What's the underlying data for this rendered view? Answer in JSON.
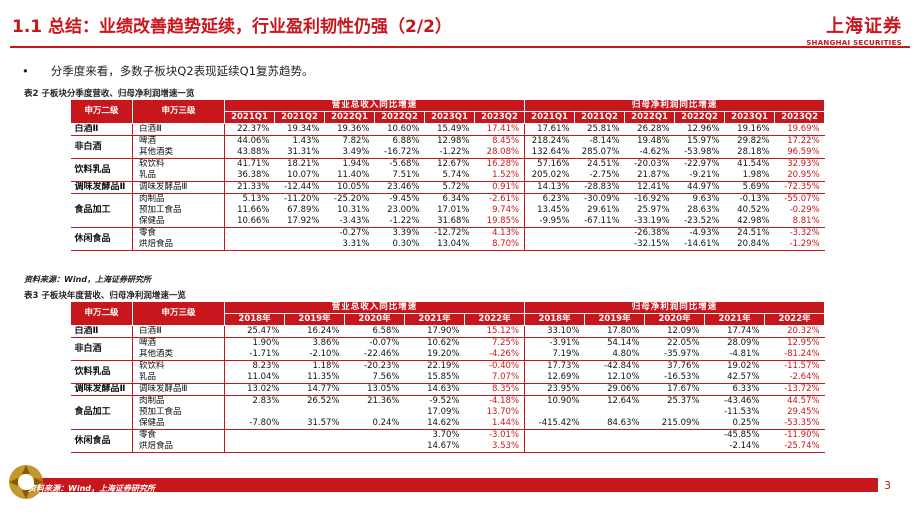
{
  "header": {
    "title": "1.1 总结：业绩改善趋势延续，行业盈利韧性仍强（2/2）",
    "logo_cn": "上海证券",
    "logo_en": "SHANGHAI SECURITIES"
  },
  "bullet": "分季度来看，多数子板块Q2表现延续Q1复苏趋势。",
  "table1": {
    "caption": "表2 子板块分季度营收、归母净利润增速一览",
    "col_l2": "申万二级",
    "col_l3": "申万三级",
    "group_revenue": "营业总收入同比增速",
    "group_profit": "归母净利润同比增速",
    "periods": [
      "2021Q1",
      "2021Q2",
      "2022Q1",
      "2022Q2",
      "2023Q1",
      "2023Q2"
    ],
    "rows": [
      {
        "l2": "白酒Ⅱ",
        "l3": "白酒Ⅲ",
        "rev": [
          "22.37%",
          "19.34%",
          "19.36%",
          "10.60%",
          "15.49%",
          "17.41%"
        ],
        "np": [
          "17.61%",
          "25.81%",
          "26.28%",
          "12.96%",
          "19.16%",
          "19.69%"
        ]
      },
      {
        "l2": "非白酒",
        "l3": "啤酒",
        "rev": [
          "44.06%",
          "1.43%",
          "7.82%",
          "6.88%",
          "12.98%",
          "8.45%"
        ],
        "np": [
          "218.24%",
          "-8.14%",
          "19.48%",
          "15.97%",
          "29.82%",
          "17.22%"
        ]
      },
      {
        "l2": "",
        "l3": "其他酒类",
        "rev": [
          "43.88%",
          "31.31%",
          "3.49%",
          "-16.72%",
          "-1.22%",
          "28.08%"
        ],
        "np": [
          "132.64%",
          "285.07%",
          "-4.62%",
          "-53.98%",
          "28.18%",
          "96.59%"
        ]
      },
      {
        "l2": "饮料乳品",
        "l3": "软饮料",
        "rev": [
          "41.71%",
          "18.21%",
          "1.94%",
          "-5.68%",
          "12.67%",
          "16.28%"
        ],
        "np": [
          "57.16%",
          "24.51%",
          "-20.03%",
          "-22.97%",
          "41.54%",
          "32.93%"
        ]
      },
      {
        "l2": "",
        "l3": "乳品",
        "rev": [
          "36.38%",
          "10.07%",
          "11.40%",
          "7.51%",
          "5.74%",
          "1.52%"
        ],
        "np": [
          "205.02%",
          "-2.75%",
          "21.87%",
          "-9.21%",
          "1.98%",
          "20.95%"
        ]
      },
      {
        "l2": "调味发酵品Ⅱ",
        "l3": "调味发酵品Ⅲ",
        "rev": [
          "21.33%",
          "-12.44%",
          "10.05%",
          "23.46%",
          "5.72%",
          "0.91%"
        ],
        "np": [
          "14.13%",
          "-28.83%",
          "12.41%",
          "44.97%",
          "5.69%",
          "-72.35%"
        ]
      },
      {
        "l2": "食品加工",
        "l3": "肉制品",
        "rev": [
          "5.13%",
          "-11.20%",
          "-25.20%",
          "-9.45%",
          "6.34%",
          "-2.61%"
        ],
        "np": [
          "6.23%",
          "-30.09%",
          "-16.92%",
          "9.63%",
          "-0.13%",
          "-55.07%"
        ]
      },
      {
        "l2": "",
        "l3": "预加工食品",
        "rev": [
          "11.66%",
          "67.89%",
          "10.31%",
          "23.00%",
          "17.01%",
          "9.74%"
        ],
        "np": [
          "13.45%",
          "29.61%",
          "25.97%",
          "28.63%",
          "40.52%",
          "-0.29%"
        ]
      },
      {
        "l2": "",
        "l3": "保健品",
        "rev": [
          "10.66%",
          "17.92%",
          "-3.43%",
          "-1.22%",
          "31.68%",
          "19.85%"
        ],
        "np": [
          "-9.95%",
          "-67.11%",
          "-33.19%",
          "-23.52%",
          "42.98%",
          "8.81%"
        ]
      },
      {
        "l2": "休闲食品",
        "l3": "零食",
        "rev": [
          "",
          "",
          "-0.27%",
          "3.39%",
          "-12.72%",
          "4.13%"
        ],
        "np": [
          "",
          "",
          "-26.38%",
          "-4.93%",
          "24.51%",
          "-3.32%"
        ]
      },
      {
        "l2": "",
        "l3": "烘焙食品",
        "rev": [
          "",
          "",
          "3.31%",
          "0.30%",
          "13.04%",
          "8.70%"
        ],
        "np": [
          "",
          "",
          "-32.15%",
          "-14.61%",
          "20.84%",
          "-1.29%"
        ]
      }
    ],
    "source": "资料来源：Wind，上海证券研究所"
  },
  "table2": {
    "caption": "表3 子板块年度营收、归母净利润增速一览",
    "col_l2": "申万二级",
    "col_l3": "申万三级",
    "group_revenue": "营业总收入同比增速",
    "group_profit": "归母净利润同比增速",
    "periods": [
      "2018年",
      "2019年",
      "2020年",
      "2021年",
      "2022年"
    ],
    "rows": [
      {
        "l2": "白酒Ⅱ",
        "l3": "白酒Ⅲ",
        "rev": [
          "25.47%",
          "16.24%",
          "6.58%",
          "17.90%",
          "15.12%"
        ],
        "np": [
          "33.10%",
          "17.80%",
          "12.09%",
          "17.74%",
          "20.32%"
        ]
      },
      {
        "l2": "非白酒",
        "l3": "啤酒",
        "rev": [
          "1.90%",
          "3.86%",
          "-0.07%",
          "10.62%",
          "7.25%"
        ],
        "np": [
          "-3.91%",
          "54.14%",
          "22.05%",
          "28.09%",
          "12.95%"
        ]
      },
      {
        "l2": "",
        "l3": "其他酒类",
        "rev": [
          "-1.71%",
          "-2.10%",
          "-22.46%",
          "19.20%",
          "-4.26%"
        ],
        "np": [
          "7.19%",
          "4.80%",
          "-35.97%",
          "-4.81%",
          "-81.24%"
        ]
      },
      {
        "l2": "饮料乳品",
        "l3": "软饮料",
        "rev": [
          "8.23%",
          "1.18%",
          "-20.23%",
          "22.19%",
          "-0.40%"
        ],
        "np": [
          "17.73%",
          "-42.84%",
          "37.76%",
          "19.02%",
          "-11.57%"
        ]
      },
      {
        "l2": "",
        "l3": "乳品",
        "rev": [
          "11.04%",
          "11.35%",
          "7.56%",
          "15.85%",
          "7.07%"
        ],
        "np": [
          "12.69%",
          "12.10%",
          "-16.53%",
          "42.57%",
          "-2.64%"
        ]
      },
      {
        "l2": "调味发酵品Ⅱ",
        "l3": "调味发酵品Ⅲ",
        "rev": [
          "13.02%",
          "14.77%",
          "13.05%",
          "14.63%",
          "8.35%"
        ],
        "np": [
          "23.95%",
          "29.06%",
          "17.67%",
          "6.33%",
          "-13.72%"
        ]
      },
      {
        "l2": "食品加工",
        "l3": "肉制品",
        "rev": [
          "2.83%",
          "26.52%",
          "21.36%",
          "-9.52%",
          "-4.18%"
        ],
        "np": [
          "10.90%",
          "12.64%",
          "25.37%",
          "-43.46%",
          "44.57%"
        ]
      },
      {
        "l2": "",
        "l3": "预加工食品",
        "rev": [
          "",
          "",
          "",
          "17.09%",
          "13.70%"
        ],
        "np": [
          "",
          "",
          "",
          "-11.53%",
          "29.45%"
        ]
      },
      {
        "l2": "",
        "l3": "保健品",
        "rev": [
          "-7.80%",
          "31.57%",
          "0.24%",
          "14.62%",
          "1.44%"
        ],
        "np": [
          "-415.42%",
          "84.63%",
          "215.09%",
          "0.25%",
          "-53.35%"
        ]
      },
      {
        "l2": "休闲食品",
        "l3": "零食",
        "rev": [
          "",
          "",
          "",
          "3.70%",
          "-3.01%"
        ],
        "np": [
          "",
          "",
          "",
          "-45.85%",
          "-11.90%"
        ]
      },
      {
        "l2": "",
        "l3": "烘焙食品",
        "rev": [
          "",
          "",
          "",
          "14.67%",
          "3.53%"
        ],
        "np": [
          "",
          "",
          "",
          "-2.14%",
          "-25.74%"
        ]
      }
    ],
    "source": "资料来源：Wind，上海证券研究所"
  },
  "page_number": "3"
}
